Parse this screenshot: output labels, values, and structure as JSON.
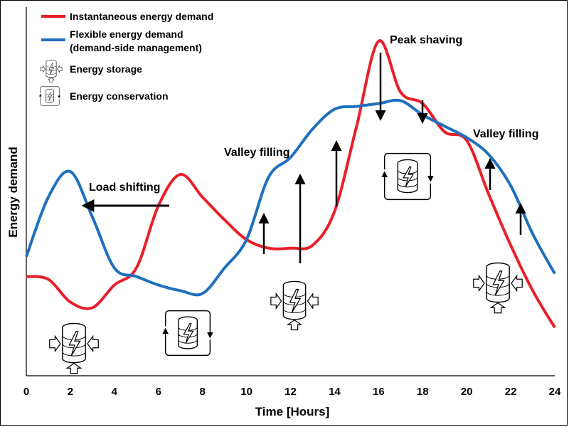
{
  "chart_data": {
    "type": "line",
    "xlabel": "Time [Hours]",
    "ylabel": "Energy demand",
    "xlim": [
      0,
      24
    ],
    "xticks": [
      "0",
      "2",
      "4",
      "6",
      "8",
      "10",
      "12",
      "14",
      "16",
      "18",
      "20",
      "22",
      "24"
    ],
    "grid": false,
    "legend_position": "top-left",
    "series": [
      {
        "name": "Instantaneous energy demand",
        "color": "#e8202a",
        "x": [
          0,
          1,
          2,
          3,
          4,
          5,
          6,
          7,
          8,
          9,
          10,
          11,
          12,
          13,
          14,
          15,
          16,
          17,
          18,
          19,
          20,
          21,
          22,
          23,
          24
        ],
        "y": [
          35,
          34,
          26,
          24,
          32,
          38,
          60,
          71,
          63,
          55,
          48,
          45,
          45,
          46,
          58,
          88,
          118,
          100,
          96,
          86,
          83,
          64,
          46,
          30,
          17
        ]
      },
      {
        "name": "Flexible energy demand",
        "name_line2": "(demand-side management)",
        "color": "#1f6fbf",
        "x": [
          0,
          1,
          2,
          3,
          4,
          5,
          6,
          7,
          8,
          9,
          10,
          11,
          12,
          13,
          14,
          15,
          16,
          17,
          18,
          19,
          20,
          21,
          22,
          23,
          24
        ],
        "y": [
          42,
          63,
          72,
          56,
          38,
          35,
          32,
          30,
          29,
          38,
          48,
          70,
          77,
          87,
          94,
          95,
          96,
          97,
          92,
          88,
          84,
          78,
          67,
          50,
          36
        ]
      }
    ],
    "legend_icons": [
      {
        "label": "Energy storage",
        "icon": "battery-storage-icon"
      },
      {
        "label": "Energy conservation",
        "icon": "battery-conservation-icon"
      }
    ],
    "annotations": [
      {
        "text": "Load shifting"
      },
      {
        "text": "Valley filling"
      },
      {
        "text": "Peak shaving"
      },
      {
        "text": "Valley filling"
      }
    ]
  }
}
